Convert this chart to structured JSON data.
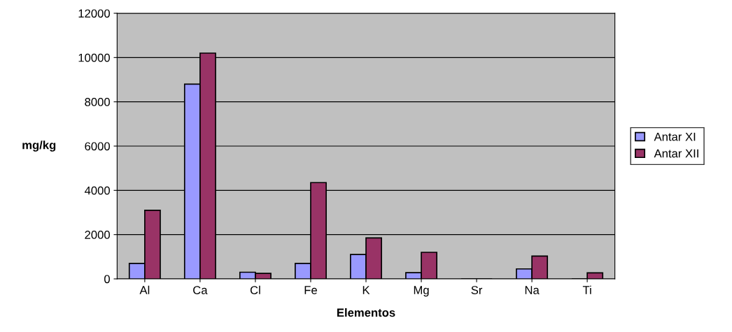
{
  "chart_data": {
    "type": "bar",
    "xlabel": "Elementos",
    "ylabel": "mg/kg",
    "categories": [
      "Al",
      "Ca",
      "Cl",
      "Fe",
      "K",
      "Mg",
      "Sr",
      "Na",
      "Ti"
    ],
    "series": [
      {
        "name": "Antar XI",
        "color": "#9999ff",
        "values": [
          700,
          8800,
          300,
          700,
          1100,
          280,
          null,
          450,
          null
        ]
      },
      {
        "name": "Antar XII",
        "color": "#993366",
        "values": [
          3100,
          10200,
          250,
          4350,
          1850,
          1200,
          null,
          1030,
          270
        ]
      }
    ],
    "ylim": [
      0,
      12000
    ],
    "yticks": [
      0,
      2000,
      4000,
      6000,
      8000,
      10000,
      12000
    ],
    "grid": "y",
    "legend": "right"
  }
}
